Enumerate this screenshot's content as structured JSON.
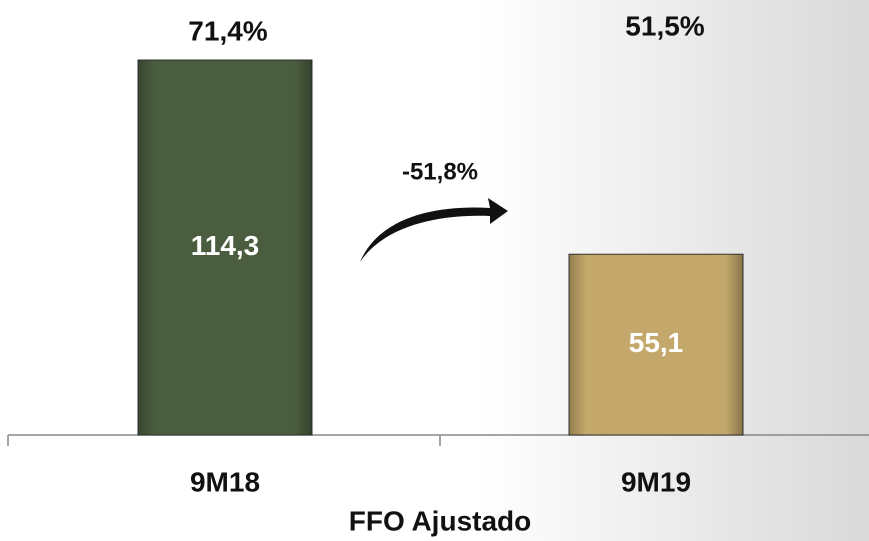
{
  "chart_data": {
    "type": "bar",
    "categories": [
      "9M18",
      "9M19"
    ],
    "values": [
      114.3,
      55.1
    ],
    "value_labels": [
      "114,3",
      "55,1"
    ],
    "colors": [
      "#4a5e3f",
      "#c4a86b"
    ],
    "margin_labels": [
      "71,4%",
      "51,5%"
    ],
    "change_label": "-51,8%",
    "x_label": "FFO Ajustado"
  }
}
